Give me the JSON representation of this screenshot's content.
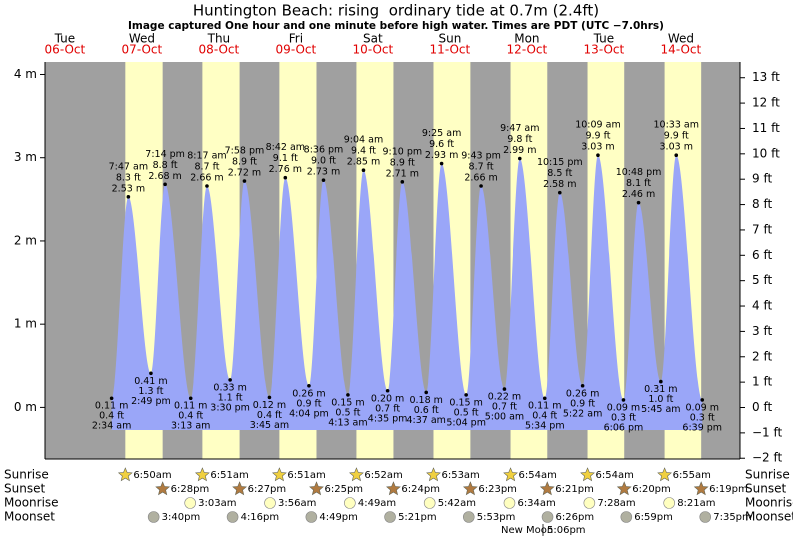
{
  "header": {
    "title": "Huntington Beach: rising  ordinary tide at 0.7m (2.4ft)",
    "subtitle": "Image captured One hour and one minute before high water. Times are PDT (UTC −7.0hrs)"
  },
  "left_axis": {
    "ylim": [
      -0.62,
      4.15
    ],
    "yticks": [
      {
        "value": 0,
        "label": "0 m"
      },
      {
        "value": 1,
        "label": "1 m"
      },
      {
        "value": 2,
        "label": "2 m"
      },
      {
        "value": 3,
        "label": "3 m"
      },
      {
        "value": 4,
        "label": "4 m"
      }
    ]
  },
  "right_axis": {
    "ylim": [
      -2.03,
      13.62
    ],
    "yticks": [
      {
        "value": -2,
        "label": "−2 ft"
      },
      {
        "value": -1,
        "label": "−1 ft"
      },
      {
        "value": 0,
        "label": "0 ft"
      },
      {
        "value": 1,
        "label": "1 ft"
      },
      {
        "value": 2,
        "label": "2 ft"
      },
      {
        "value": 3,
        "label": "3 ft"
      },
      {
        "value": 4,
        "label": "4 ft"
      },
      {
        "value": 5,
        "label": "5 ft"
      },
      {
        "value": 6,
        "label": "6 ft"
      },
      {
        "value": 7,
        "label": "7 ft"
      },
      {
        "value": 8,
        "label": "8 ft"
      },
      {
        "value": 9,
        "label": "9 ft"
      },
      {
        "value": 10,
        "label": "10 ft"
      },
      {
        "value": 11,
        "label": "11 ft"
      },
      {
        "value": 12,
        "label": "12 ft"
      },
      {
        "value": 13,
        "label": "13 ft"
      }
    ]
  },
  "almanac_labels": {
    "sunrise": "Sunrise",
    "sunset": "Sunset",
    "moonrise": "Moonrise",
    "moonset": "Moonset"
  },
  "days": [
    {
      "dow": "Tue",
      "date": "06-Oct",
      "tides": []
    },
    {
      "dow": "Wed",
      "date": "07-Oct",
      "sunrise": "6:50am",
      "sunset": "6:28pm",
      "moonset": "3:40pm",
      "tides": [
        {
          "time": "2:34 am",
          "m": 0.11,
          "m_label": "0.11 m",
          "ft_label": "0.4 ft"
        },
        {
          "time": "7:47 am",
          "m": 2.53,
          "m_label": "2.53 m",
          "ft_label": "8.3 ft"
        },
        {
          "time": "2:49 pm",
          "m": 0.41,
          "m_label": "0.41 m",
          "ft_label": "1.3 ft"
        },
        {
          "time": "7:14 pm",
          "m": 2.68,
          "m_label": "2.68 m",
          "ft_label": "8.8 ft"
        }
      ]
    },
    {
      "dow": "Thu",
      "date": "08-Oct",
      "sunrise": "6:51am",
      "sunset": "6:27pm",
      "moonrise": "3:03am",
      "moonset": "4:16pm",
      "tides": [
        {
          "time": "3:13 am",
          "m": 0.11,
          "m_label": "0.11 m",
          "ft_label": "0.4 ft"
        },
        {
          "time": "8:17 am",
          "m": 2.66,
          "m_label": "2.66 m",
          "ft_label": "8.7 ft"
        },
        {
          "time": "3:30 pm",
          "m": 0.33,
          "m_label": "0.33 m",
          "ft_label": "1.1 ft"
        },
        {
          "time": "7:58 pm",
          "m": 2.72,
          "m_label": "2.72 m",
          "ft_label": "8.9 ft"
        }
      ]
    },
    {
      "dow": "Fri",
      "date": "09-Oct",
      "sunrise": "6:51am",
      "sunset": "6:25pm",
      "moonrise": "3:56am",
      "moonset": "4:49pm",
      "tides": [
        {
          "time": "3:45 am",
          "m": 0.12,
          "m_label": "0.12 m",
          "ft_label": "0.4 ft"
        },
        {
          "time": "8:42 am",
          "m": 2.76,
          "m_label": "2.76 m",
          "ft_label": "9.1 ft"
        },
        {
          "time": "4:04 pm",
          "m": 0.26,
          "m_label": "0.26 m",
          "ft_label": "0.9 ft"
        },
        {
          "time": "8:36 pm",
          "m": 2.73,
          "m_label": "2.73 m",
          "ft_label": "9.0 ft"
        }
      ]
    },
    {
      "dow": "Sat",
      "date": "10-Oct",
      "sunrise": "6:52am",
      "sunset": "6:24pm",
      "moonrise": "4:49am",
      "moonset": "5:21pm",
      "tides": [
        {
          "time": "4:13 am",
          "m": 0.15,
          "m_label": "0.15 m",
          "ft_label": "0.5 ft"
        },
        {
          "time": "9:04 am",
          "m": 2.85,
          "m_label": "2.85 m",
          "ft_label": "9.4 ft"
        },
        {
          "time": "4:35 pm",
          "m": 0.2,
          "m_label": "0.20 m",
          "ft_label": "0.7 ft"
        },
        {
          "time": "9:10 pm",
          "m": 2.71,
          "m_label": "2.71 m",
          "ft_label": "8.9 ft"
        }
      ]
    },
    {
      "dow": "Sun",
      "date": "11-Oct",
      "sunrise": "6:53am",
      "sunset": "6:23pm",
      "moonrise": "5:42am",
      "moonset": "5:53pm",
      "tides": [
        {
          "time": "4:37 am",
          "m": 0.18,
          "m_label": "0.18 m",
          "ft_label": "0.6 ft"
        },
        {
          "time": "9:25 am",
          "m": 2.93,
          "m_label": "2.93 m",
          "ft_label": "9.6 ft"
        },
        {
          "time": "5:04 pm",
          "m": 0.15,
          "m_label": "0.15 m",
          "ft_label": "0.5 ft"
        },
        {
          "time": "9:43 pm",
          "m": 2.66,
          "m_label": "2.66 m",
          "ft_label": "8.7 ft"
        }
      ]
    },
    {
      "dow": "Mon",
      "date": "12-Oct",
      "sunrise": "6:54am",
      "sunset": "6:21pm",
      "moonrise": "6:34am",
      "moonset": "6:26pm",
      "tides": [
        {
          "time": "5:00 am",
          "m": 0.22,
          "m_label": "0.22 m",
          "ft_label": "0.7 ft"
        },
        {
          "time": "9:47 am",
          "m": 2.99,
          "m_label": "2.99 m",
          "ft_label": "9.8 ft"
        },
        {
          "time": "5:34 pm",
          "m": 0.11,
          "m_label": "0.11 m",
          "ft_label": "0.4 ft"
        },
        {
          "time": "10:15 pm",
          "m": 2.58,
          "m_label": "2.58 m",
          "ft_label": "8.5 ft"
        }
      ]
    },
    {
      "dow": "Tue",
      "date": "13-Oct",
      "sunrise": "6:54am",
      "sunset": "6:20pm",
      "moonrise": "7:28am",
      "moonset": "6:59pm",
      "tides": [
        {
          "time": "5:22 am",
          "m": 0.26,
          "m_label": "0.26 m",
          "ft_label": "0.9 ft"
        },
        {
          "time": "10:09 am",
          "m": 3.03,
          "m_label": "3.03 m",
          "ft_label": "9.9 ft"
        },
        {
          "time": "6:06 pm",
          "m": 0.09,
          "m_label": "0.09 m",
          "ft_label": "0.3 ft"
        },
        {
          "time": "10:48 pm",
          "m": 2.46,
          "m_label": "2.46 m",
          "ft_label": "8.1 ft"
        }
      ]
    },
    {
      "dow": "Wed",
      "date": "14-Oct",
      "sunrise": "6:55am",
      "sunset": "6:19pm",
      "moonrise": "8:21am",
      "moonset": "7:35pm",
      "tides": [
        {
          "time": "5:45 am",
          "m": 0.31,
          "m_label": "0.31 m",
          "ft_label": "1.0 ft"
        },
        {
          "time": "10:33 am",
          "m": 3.03,
          "m_label": "3.03 m",
          "ft_label": "9.9 ft"
        },
        {
          "time": "6:39 pm",
          "m": 0.09,
          "m_label": "0.09 m",
          "ft_label": "0.3 ft"
        }
      ]
    }
  ],
  "moon_phase": {
    "name": "New Moon",
    "time": "5:06pm"
  }
}
